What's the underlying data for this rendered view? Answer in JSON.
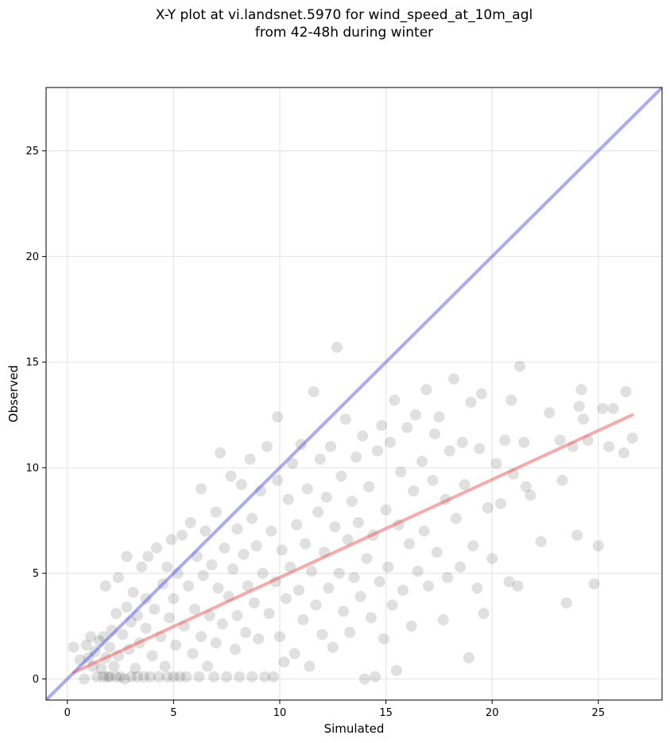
{
  "chart_data": {
    "type": "scatter",
    "title": "X-Y plot at vi.landsnet.5970 for wind_speed_at_10m_agl",
    "subtitle": "from 42-48h during winter",
    "xlabel": "Simulated",
    "ylabel": "Observed",
    "xlim": [
      -1,
      28
    ],
    "ylim": [
      -1,
      28
    ],
    "xticks": [
      0,
      5,
      10,
      15,
      20,
      25
    ],
    "yticks": [
      0,
      5,
      10,
      15,
      20,
      25
    ],
    "grid": true,
    "colors": {
      "points": "#000000",
      "identity_line": "#5555ee",
      "fit_line": "#ee5555",
      "grid": "#e6e6e6"
    },
    "reference_lines": [
      {
        "kind": "identity",
        "points": [
          [
            -1,
            -1
          ],
          [
            28,
            28
          ]
        ]
      },
      {
        "kind": "regression",
        "points": [
          [
            0.3,
            0.3
          ],
          [
            26.6,
            12.5
          ]
        ]
      }
    ],
    "points": [
      [
        0.3,
        1.5
      ],
      [
        0.6,
        0.9
      ],
      [
        0.8,
        0.0
      ],
      [
        0.9,
        1.6
      ],
      [
        1.0,
        1.0
      ],
      [
        1.1,
        2.0
      ],
      [
        1.2,
        0.6
      ],
      [
        1.3,
        1.3
      ],
      [
        1.4,
        0.1
      ],
      [
        1.5,
        1.8
      ],
      [
        1.6,
        0.5
      ],
      [
        1.7,
        0.1
      ],
      [
        1.7,
        2.0
      ],
      [
        1.8,
        1.0
      ],
      [
        1.8,
        4.4
      ],
      [
        1.9,
        0.1
      ],
      [
        2.0,
        1.5
      ],
      [
        2.0,
        0.1
      ],
      [
        2.1,
        2.3
      ],
      [
        2.2,
        0.6
      ],
      [
        2.3,
        0.1
      ],
      [
        2.3,
        3.1
      ],
      [
        2.4,
        1.1
      ],
      [
        2.4,
        4.8
      ],
      [
        2.5,
        0.1
      ],
      [
        2.6,
        2.1
      ],
      [
        2.7,
        0.0
      ],
      [
        2.8,
        3.4
      ],
      [
        2.8,
        5.8
      ],
      [
        2.9,
        1.4
      ],
      [
        3.0,
        0.1
      ],
      [
        3.0,
        2.7
      ],
      [
        3.1,
        4.1
      ],
      [
        3.2,
        0.5
      ],
      [
        3.3,
        0.1
      ],
      [
        3.3,
        3.0
      ],
      [
        3.4,
        1.7
      ],
      [
        3.5,
        5.3
      ],
      [
        3.6,
        0.1
      ],
      [
        3.7,
        2.4
      ],
      [
        3.7,
        3.8
      ],
      [
        3.8,
        5.8
      ],
      [
        3.9,
        0.1
      ],
      [
        4.0,
        1.1
      ],
      [
        4.1,
        3.3
      ],
      [
        4.2,
        6.2
      ],
      [
        4.3,
        0.1
      ],
      [
        4.4,
        2.0
      ],
      [
        4.5,
        4.5
      ],
      [
        4.6,
        0.6
      ],
      [
        4.7,
        0.1
      ],
      [
        4.7,
        5.3
      ],
      [
        4.8,
        2.9
      ],
      [
        4.9,
        6.6
      ],
      [
        5.0,
        0.1
      ],
      [
        5.0,
        3.8
      ],
      [
        5.1,
        1.6
      ],
      [
        5.2,
        5.0
      ],
      [
        5.3,
        0.1
      ],
      [
        5.4,
        6.8
      ],
      [
        5.5,
        2.5
      ],
      [
        5.6,
        0.1
      ],
      [
        5.7,
        4.4
      ],
      [
        5.8,
        7.4
      ],
      [
        5.9,
        1.2
      ],
      [
        6.0,
        3.3
      ],
      [
        6.1,
        5.8
      ],
      [
        6.2,
        0.1
      ],
      [
        6.3,
        2.0
      ],
      [
        6.3,
        9.0
      ],
      [
        6.4,
        4.9
      ],
      [
        6.5,
        7.0
      ],
      [
        6.6,
        0.6
      ],
      [
        6.7,
        3.0
      ],
      [
        6.8,
        5.4
      ],
      [
        6.9,
        0.1
      ],
      [
        7.0,
        1.7
      ],
      [
        7.0,
        7.9
      ],
      [
        7.1,
        4.3
      ],
      [
        7.2,
        10.7
      ],
      [
        7.3,
        2.6
      ],
      [
        7.4,
        6.2
      ],
      [
        7.5,
        0.1
      ],
      [
        7.6,
        3.9
      ],
      [
        7.7,
        9.6
      ],
      [
        7.8,
        5.2
      ],
      [
        7.9,
        1.4
      ],
      [
        8.0,
        7.1
      ],
      [
        8.0,
        3.0
      ],
      [
        8.1,
        0.1
      ],
      [
        8.2,
        9.2
      ],
      [
        8.3,
        5.9
      ],
      [
        8.4,
        2.2
      ],
      [
        8.5,
        4.4
      ],
      [
        8.6,
        10.4
      ],
      [
        8.7,
        0.1
      ],
      [
        8.7,
        7.6
      ],
      [
        8.8,
        3.6
      ],
      [
        8.9,
        6.3
      ],
      [
        9.0,
        1.9
      ],
      [
        9.1,
        8.9
      ],
      [
        9.2,
        5.0
      ],
      [
        9.3,
        0.1
      ],
      [
        9.4,
        11.0
      ],
      [
        9.5,
        3.1
      ],
      [
        9.6,
        7.0
      ],
      [
        9.7,
        0.1
      ],
      [
        9.8,
        4.6
      ],
      [
        9.9,
        9.4
      ],
      [
        9.9,
        12.4
      ],
      [
        10.0,
        2.0
      ],
      [
        10.1,
        6.1
      ],
      [
        10.2,
        0.8
      ],
      [
        10.3,
        3.8
      ],
      [
        10.4,
        8.5
      ],
      [
        10.5,
        5.3
      ],
      [
        10.6,
        10.2
      ],
      [
        10.7,
        1.2
      ],
      [
        10.8,
        7.3
      ],
      [
        10.9,
        4.2
      ],
      [
        11.0,
        11.1
      ],
      [
        11.1,
        2.8
      ],
      [
        11.2,
        6.4
      ],
      [
        11.3,
        9.0
      ],
      [
        11.4,
        0.6
      ],
      [
        11.5,
        5.1
      ],
      [
        11.6,
        13.6
      ],
      [
        11.7,
        3.5
      ],
      [
        11.8,
        7.9
      ],
      [
        11.9,
        10.4
      ],
      [
        12.0,
        2.1
      ],
      [
        12.1,
        6.0
      ],
      [
        12.2,
        8.6
      ],
      [
        12.3,
        4.3
      ],
      [
        12.4,
        11.0
      ],
      [
        12.5,
        1.5
      ],
      [
        12.6,
        7.2
      ],
      [
        12.7,
        15.7
      ],
      [
        12.8,
        5.0
      ],
      [
        12.9,
        9.6
      ],
      [
        13.0,
        3.2
      ],
      [
        13.1,
        12.3
      ],
      [
        13.2,
        6.6
      ],
      [
        13.3,
        2.2
      ],
      [
        13.4,
        8.4
      ],
      [
        13.5,
        4.8
      ],
      [
        13.6,
        10.5
      ],
      [
        13.7,
        7.4
      ],
      [
        13.8,
        3.9
      ],
      [
        13.9,
        11.5
      ],
      [
        14.0,
        0.0
      ],
      [
        14.1,
        5.7
      ],
      [
        14.2,
        9.1
      ],
      [
        14.3,
        2.9
      ],
      [
        14.4,
        6.8
      ],
      [
        14.5,
        0.1
      ],
      [
        14.6,
        10.8
      ],
      [
        14.7,
        4.6
      ],
      [
        14.8,
        12.0
      ],
      [
        14.9,
        1.9
      ],
      [
        15.0,
        8.0
      ],
      [
        15.1,
        5.3
      ],
      [
        15.2,
        11.2
      ],
      [
        15.3,
        3.5
      ],
      [
        15.4,
        13.2
      ],
      [
        15.5,
        0.4
      ],
      [
        15.6,
        7.3
      ],
      [
        15.7,
        9.8
      ],
      [
        15.8,
        4.2
      ],
      [
        16.0,
        11.9
      ],
      [
        16.1,
        6.4
      ],
      [
        16.2,
        2.5
      ],
      [
        16.3,
        8.9
      ],
      [
        16.4,
        12.5
      ],
      [
        16.5,
        5.1
      ],
      [
        16.7,
        10.3
      ],
      [
        16.8,
        7.0
      ],
      [
        16.9,
        13.7
      ],
      [
        17.0,
        4.4
      ],
      [
        17.2,
        9.4
      ],
      [
        17.3,
        11.6
      ],
      [
        17.4,
        6.0
      ],
      [
        17.5,
        12.4
      ],
      [
        17.7,
        2.8
      ],
      [
        17.8,
        8.5
      ],
      [
        17.9,
        4.8
      ],
      [
        18.0,
        10.8
      ],
      [
        18.2,
        14.2
      ],
      [
        18.3,
        7.6
      ],
      [
        18.5,
        5.3
      ],
      [
        18.6,
        11.2
      ],
      [
        18.7,
        9.2
      ],
      [
        18.9,
        1.0
      ],
      [
        19.0,
        13.1
      ],
      [
        19.1,
        6.3
      ],
      [
        19.3,
        4.3
      ],
      [
        19.4,
        10.9
      ],
      [
        19.5,
        13.5
      ],
      [
        19.6,
        3.1
      ],
      [
        19.8,
        8.1
      ],
      [
        20.0,
        5.7
      ],
      [
        20.2,
        10.2
      ],
      [
        20.4,
        8.3
      ],
      [
        20.6,
        11.3
      ],
      [
        20.8,
        4.6
      ],
      [
        20.9,
        13.2
      ],
      [
        21.0,
        9.7
      ],
      [
        21.2,
        4.4
      ],
      [
        21.3,
        14.8
      ],
      [
        21.5,
        11.2
      ],
      [
        21.6,
        9.1
      ],
      [
        21.8,
        8.7
      ],
      [
        22.3,
        6.5
      ],
      [
        22.7,
        12.6
      ],
      [
        23.2,
        11.3
      ],
      [
        23.3,
        9.4
      ],
      [
        23.5,
        3.6
      ],
      [
        23.8,
        11.0
      ],
      [
        24.0,
        6.8
      ],
      [
        24.1,
        12.9
      ],
      [
        24.2,
        13.7
      ],
      [
        24.3,
        12.3
      ],
      [
        24.5,
        11.3
      ],
      [
        24.8,
        4.5
      ],
      [
        25.0,
        6.3
      ],
      [
        25.2,
        12.8
      ],
      [
        25.5,
        11.0
      ],
      [
        25.7,
        12.8
      ],
      [
        26.2,
        10.7
      ],
      [
        26.3,
        13.6
      ],
      [
        26.6,
        11.4
      ]
    ]
  }
}
